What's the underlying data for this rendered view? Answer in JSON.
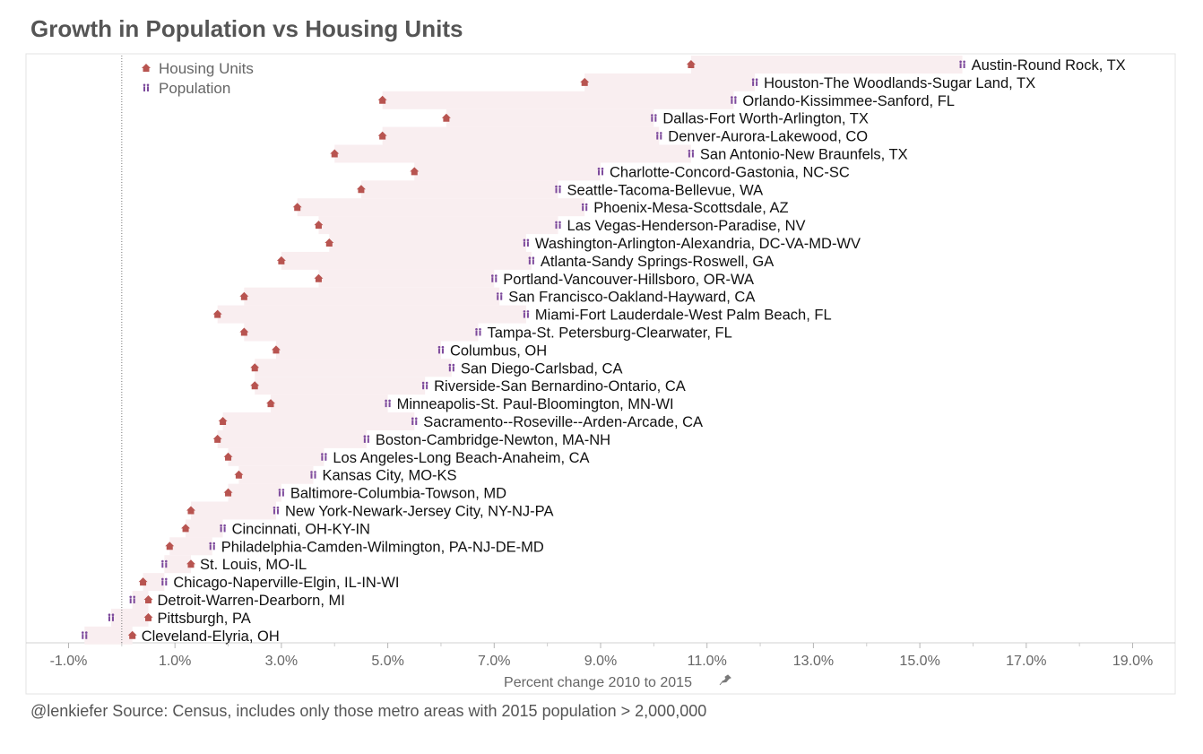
{
  "title": "Growth in Population vs Housing Units",
  "caption": "@lenkiefer Source: Census, includes only those metro areas with 2015 population > 2,000,000",
  "colors": {
    "housing": "#b85450",
    "population": "#7d4a9c",
    "band": "#f9eef0",
    "title": "#555555",
    "axis": "#666666"
  },
  "legend": [
    {
      "key": "housing",
      "label": "Housing Units",
      "icon": "house-icon"
    },
    {
      "key": "population",
      "label": "Population",
      "icon": "people-icon"
    }
  ],
  "chart_data": {
    "type": "dumbbell",
    "xlabel": "Percent change 2010 to 2015",
    "xlim": [
      -1.8,
      19.8
    ],
    "x_ticks": [
      -1,
      1,
      3,
      5,
      7,
      9,
      11,
      13,
      15,
      17,
      19
    ],
    "x_tick_labels": [
      "-1.0%",
      "1.0%",
      "3.0%",
      "5.0%",
      "7.0%",
      "9.0%",
      "11.0%",
      "13.0%",
      "15.0%",
      "17.0%",
      "19.0%"
    ],
    "reference_line_x": 0,
    "series": [
      {
        "name": "Housing Units",
        "key": "housing"
      },
      {
        "name": "Population",
        "key": "population"
      }
    ],
    "rows": [
      {
        "metro": "Austin-Round Rock, TX",
        "housing": 10.7,
        "population": 15.8
      },
      {
        "metro": "Houston-The Woodlands-Sugar Land, TX",
        "housing": 8.7,
        "population": 11.9
      },
      {
        "metro": "Orlando-Kissimmee-Sanford, FL",
        "housing": 4.9,
        "population": 11.5
      },
      {
        "metro": "Dallas-Fort Worth-Arlington, TX",
        "housing": 6.1,
        "population": 10.0
      },
      {
        "metro": "Denver-Aurora-Lakewood, CO",
        "housing": 4.9,
        "population": 10.1
      },
      {
        "metro": "San Antonio-New Braunfels, TX",
        "housing": 4.0,
        "population": 10.7
      },
      {
        "metro": "Charlotte-Concord-Gastonia, NC-SC",
        "housing": 5.5,
        "population": 9.0
      },
      {
        "metro": "Seattle-Tacoma-Bellevue, WA",
        "housing": 4.5,
        "population": 8.2
      },
      {
        "metro": "Phoenix-Mesa-Scottsdale, AZ",
        "housing": 3.3,
        "population": 8.7
      },
      {
        "metro": "Las Vegas-Henderson-Paradise, NV",
        "housing": 3.7,
        "population": 8.2
      },
      {
        "metro": "Washington-Arlington-Alexandria, DC-VA-MD-WV",
        "housing": 3.9,
        "population": 7.6
      },
      {
        "metro": "Atlanta-Sandy Springs-Roswell, GA",
        "housing": 3.0,
        "population": 7.7
      },
      {
        "metro": "Portland-Vancouver-Hillsboro, OR-WA",
        "housing": 3.7,
        "population": 7.0
      },
      {
        "metro": "San Francisco-Oakland-Hayward, CA",
        "housing": 2.3,
        "population": 7.1
      },
      {
        "metro": "Miami-Fort Lauderdale-West Palm Beach, FL",
        "housing": 1.8,
        "population": 7.6
      },
      {
        "metro": "Tampa-St. Petersburg-Clearwater, FL",
        "housing": 2.3,
        "population": 6.7
      },
      {
        "metro": "Columbus, OH",
        "housing": 2.9,
        "population": 6.0
      },
      {
        "metro": "San Diego-Carlsbad, CA",
        "housing": 2.5,
        "population": 6.2
      },
      {
        "metro": "Riverside-San Bernardino-Ontario, CA",
        "housing": 2.5,
        "population": 5.7
      },
      {
        "metro": "Minneapolis-St. Paul-Bloomington, MN-WI",
        "housing": 2.8,
        "population": 5.0
      },
      {
        "metro": "Sacramento--Roseville--Arden-Arcade, CA",
        "housing": 1.9,
        "population": 5.5
      },
      {
        "metro": "Boston-Cambridge-Newton, MA-NH",
        "housing": 1.8,
        "population": 4.6
      },
      {
        "metro": "Los Angeles-Long Beach-Anaheim, CA",
        "housing": 2.0,
        "population": 3.8
      },
      {
        "metro": "Kansas City, MO-KS",
        "housing": 2.2,
        "population": 3.6
      },
      {
        "metro": "Baltimore-Columbia-Towson, MD",
        "housing": 2.0,
        "population": 3.0
      },
      {
        "metro": "New York-Newark-Jersey City, NY-NJ-PA",
        "housing": 1.3,
        "population": 2.9
      },
      {
        "metro": "Cincinnati, OH-KY-IN",
        "housing": 1.2,
        "population": 1.9
      },
      {
        "metro": "Philadelphia-Camden-Wilmington, PA-NJ-DE-MD",
        "housing": 0.9,
        "population": 1.7
      },
      {
        "metro": "St. Louis, MO-IL",
        "housing": 1.3,
        "population": 0.8
      },
      {
        "metro": "Chicago-Naperville-Elgin, IL-IN-WI",
        "housing": 0.4,
        "population": 0.8
      },
      {
        "metro": "Detroit-Warren-Dearborn, MI",
        "housing": 0.5,
        "population": 0.2
      },
      {
        "metro": "Pittsburgh, PA",
        "housing": 0.5,
        "population": -0.2
      },
      {
        "metro": "Cleveland-Elyria, OH",
        "housing": 0.2,
        "population": -0.7
      }
    ]
  }
}
